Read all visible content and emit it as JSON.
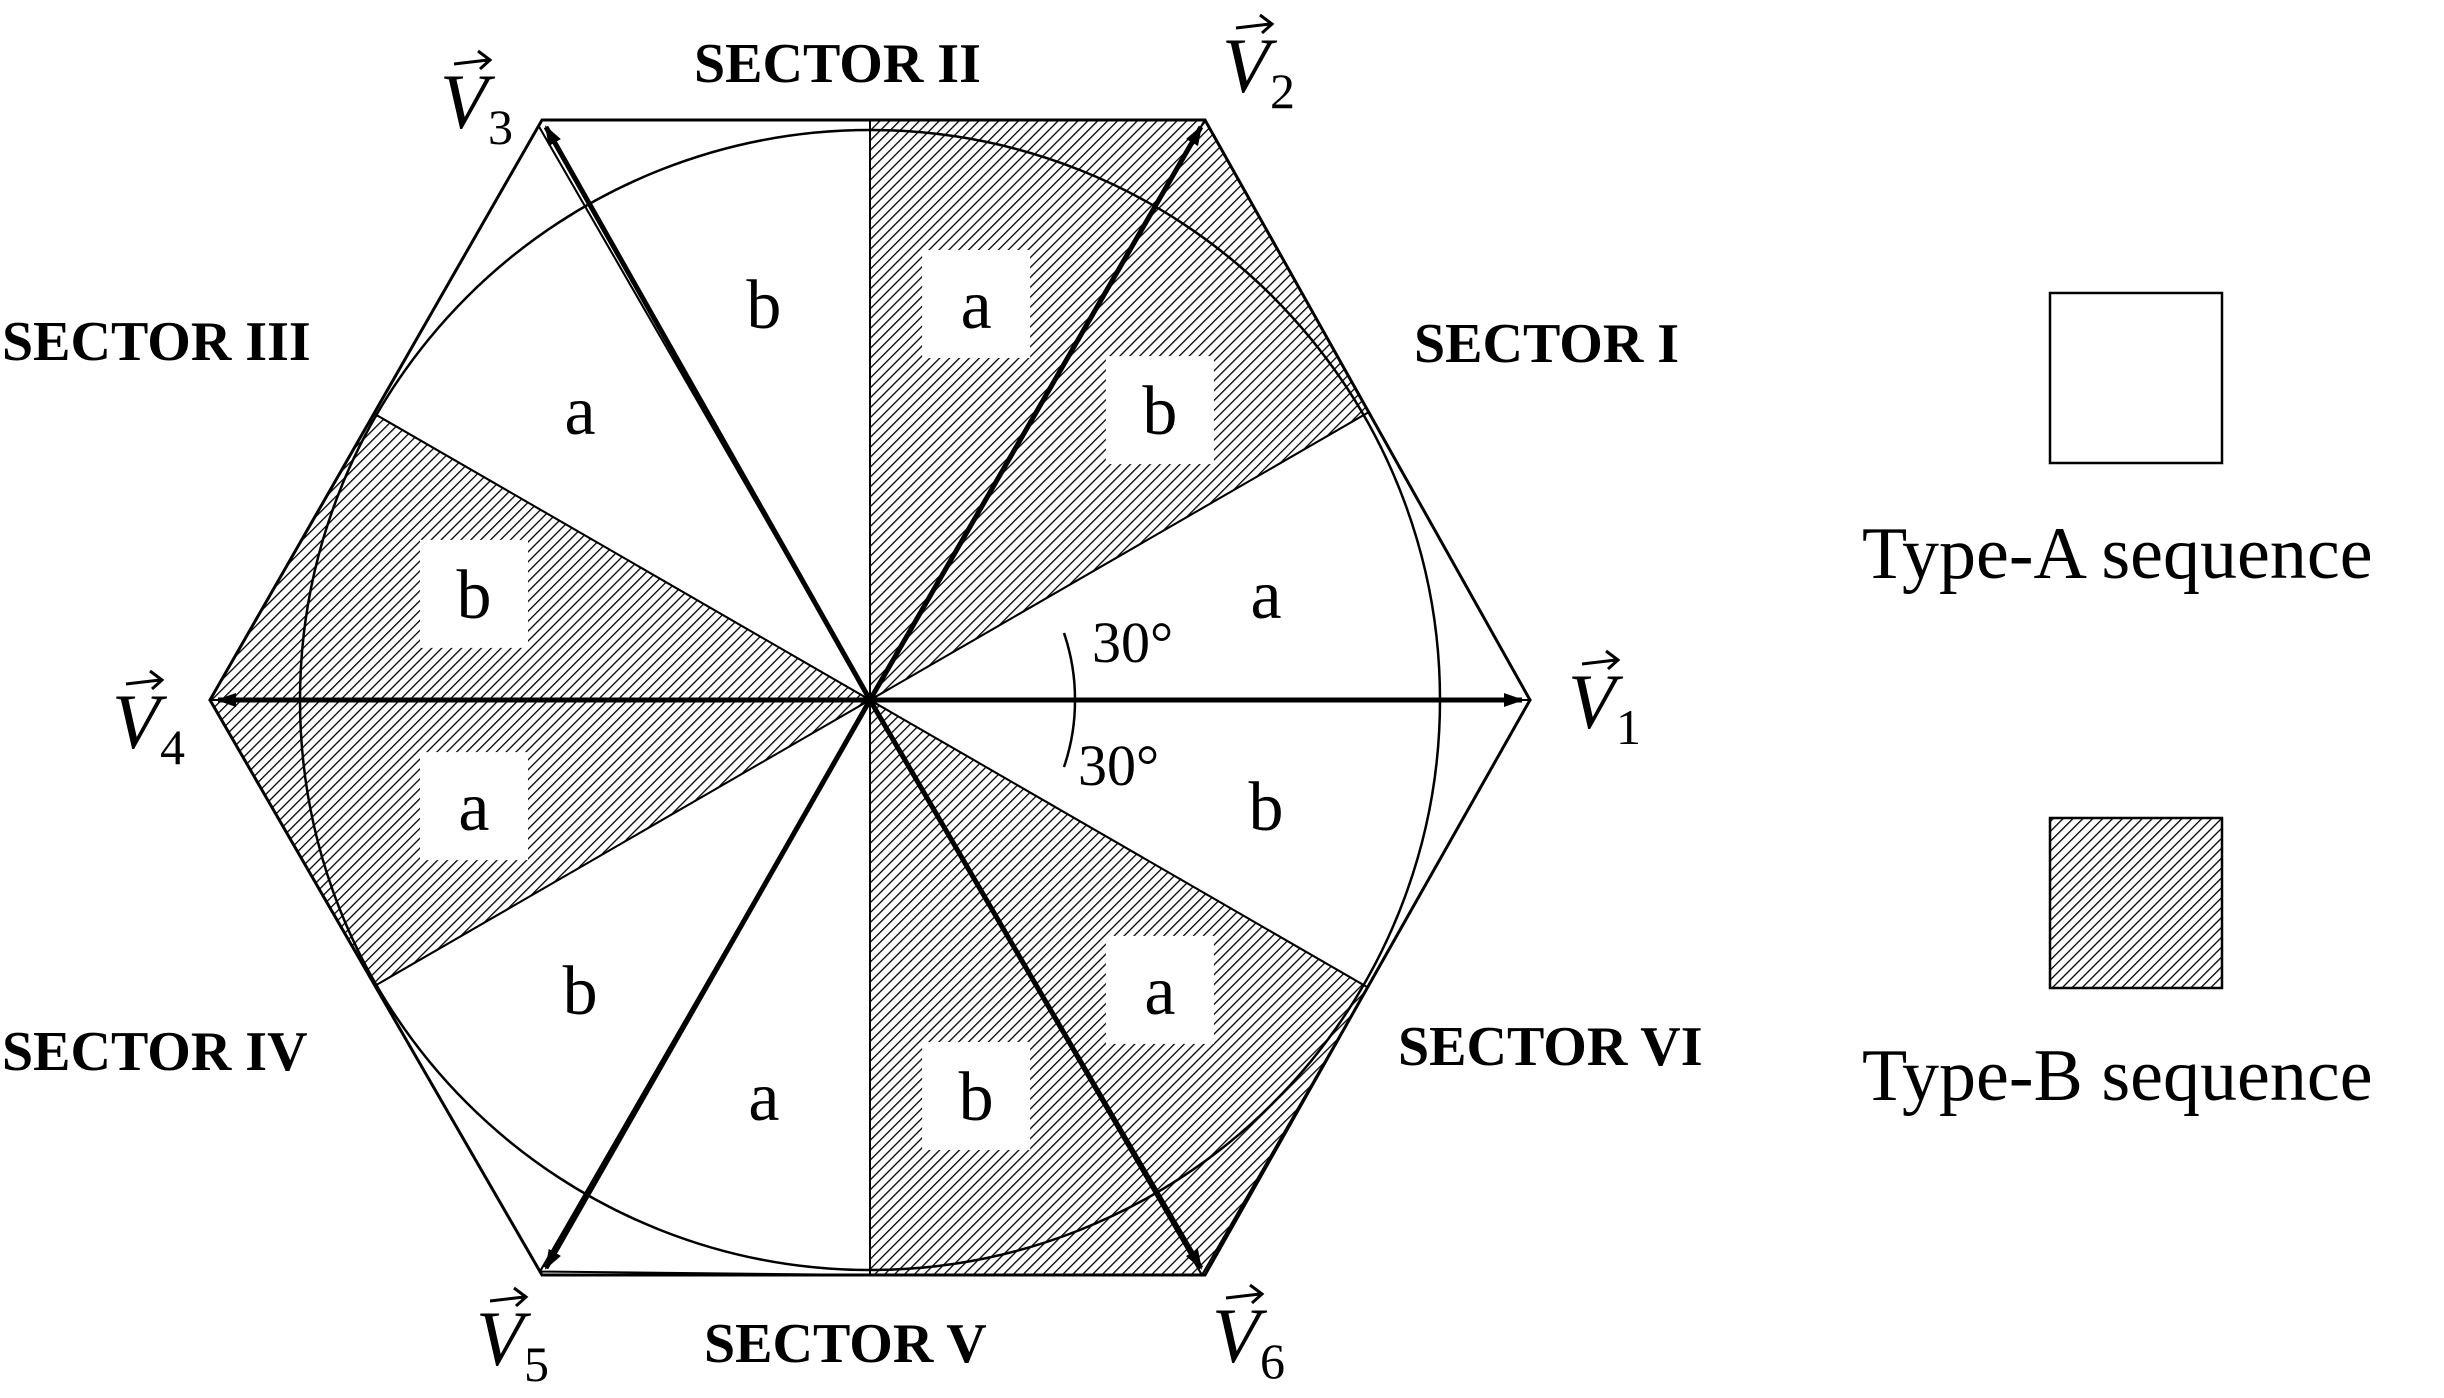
{
  "sectors": [
    {
      "id": "I",
      "label": "SECTOR I"
    },
    {
      "id": "II",
      "label": "SECTOR II"
    },
    {
      "id": "III",
      "label": "SECTOR III"
    },
    {
      "id": "IV",
      "label": "SECTOR IV"
    },
    {
      "id": "V",
      "label": "SECTOR V"
    },
    {
      "id": "VI",
      "label": "SECTOR VI"
    }
  ],
  "vectors": [
    {
      "symbol": "V",
      "subscript": "1"
    },
    {
      "symbol": "V",
      "subscript": "2"
    },
    {
      "symbol": "V",
      "subscript": "3"
    },
    {
      "symbol": "V",
      "subscript": "4"
    },
    {
      "symbol": "V",
      "subscript": "5"
    },
    {
      "symbol": "V",
      "subscript": "6"
    }
  ],
  "regions": [
    {
      "letter": "a",
      "type": "A"
    },
    {
      "letter": "b",
      "type": "B"
    },
    {
      "letter": "a",
      "type": "B"
    },
    {
      "letter": "b",
      "type": "A"
    },
    {
      "letter": "a",
      "type": "A"
    },
    {
      "letter": "b",
      "type": "B"
    },
    {
      "letter": "a",
      "type": "B"
    },
    {
      "letter": "b",
      "type": "A"
    },
    {
      "letter": "a",
      "type": "A"
    },
    {
      "letter": "b",
      "type": "B"
    },
    {
      "letter": "a",
      "type": "B"
    },
    {
      "letter": "b",
      "type": "A"
    }
  ],
  "angles": [
    "30°",
    "30°"
  ],
  "legend": {
    "type_a": "Type-A sequence",
    "type_b": "Type-B sequence"
  },
  "colors": {
    "line": "#000000",
    "fill_a": "#ffffff",
    "hatch": "#000000"
  }
}
